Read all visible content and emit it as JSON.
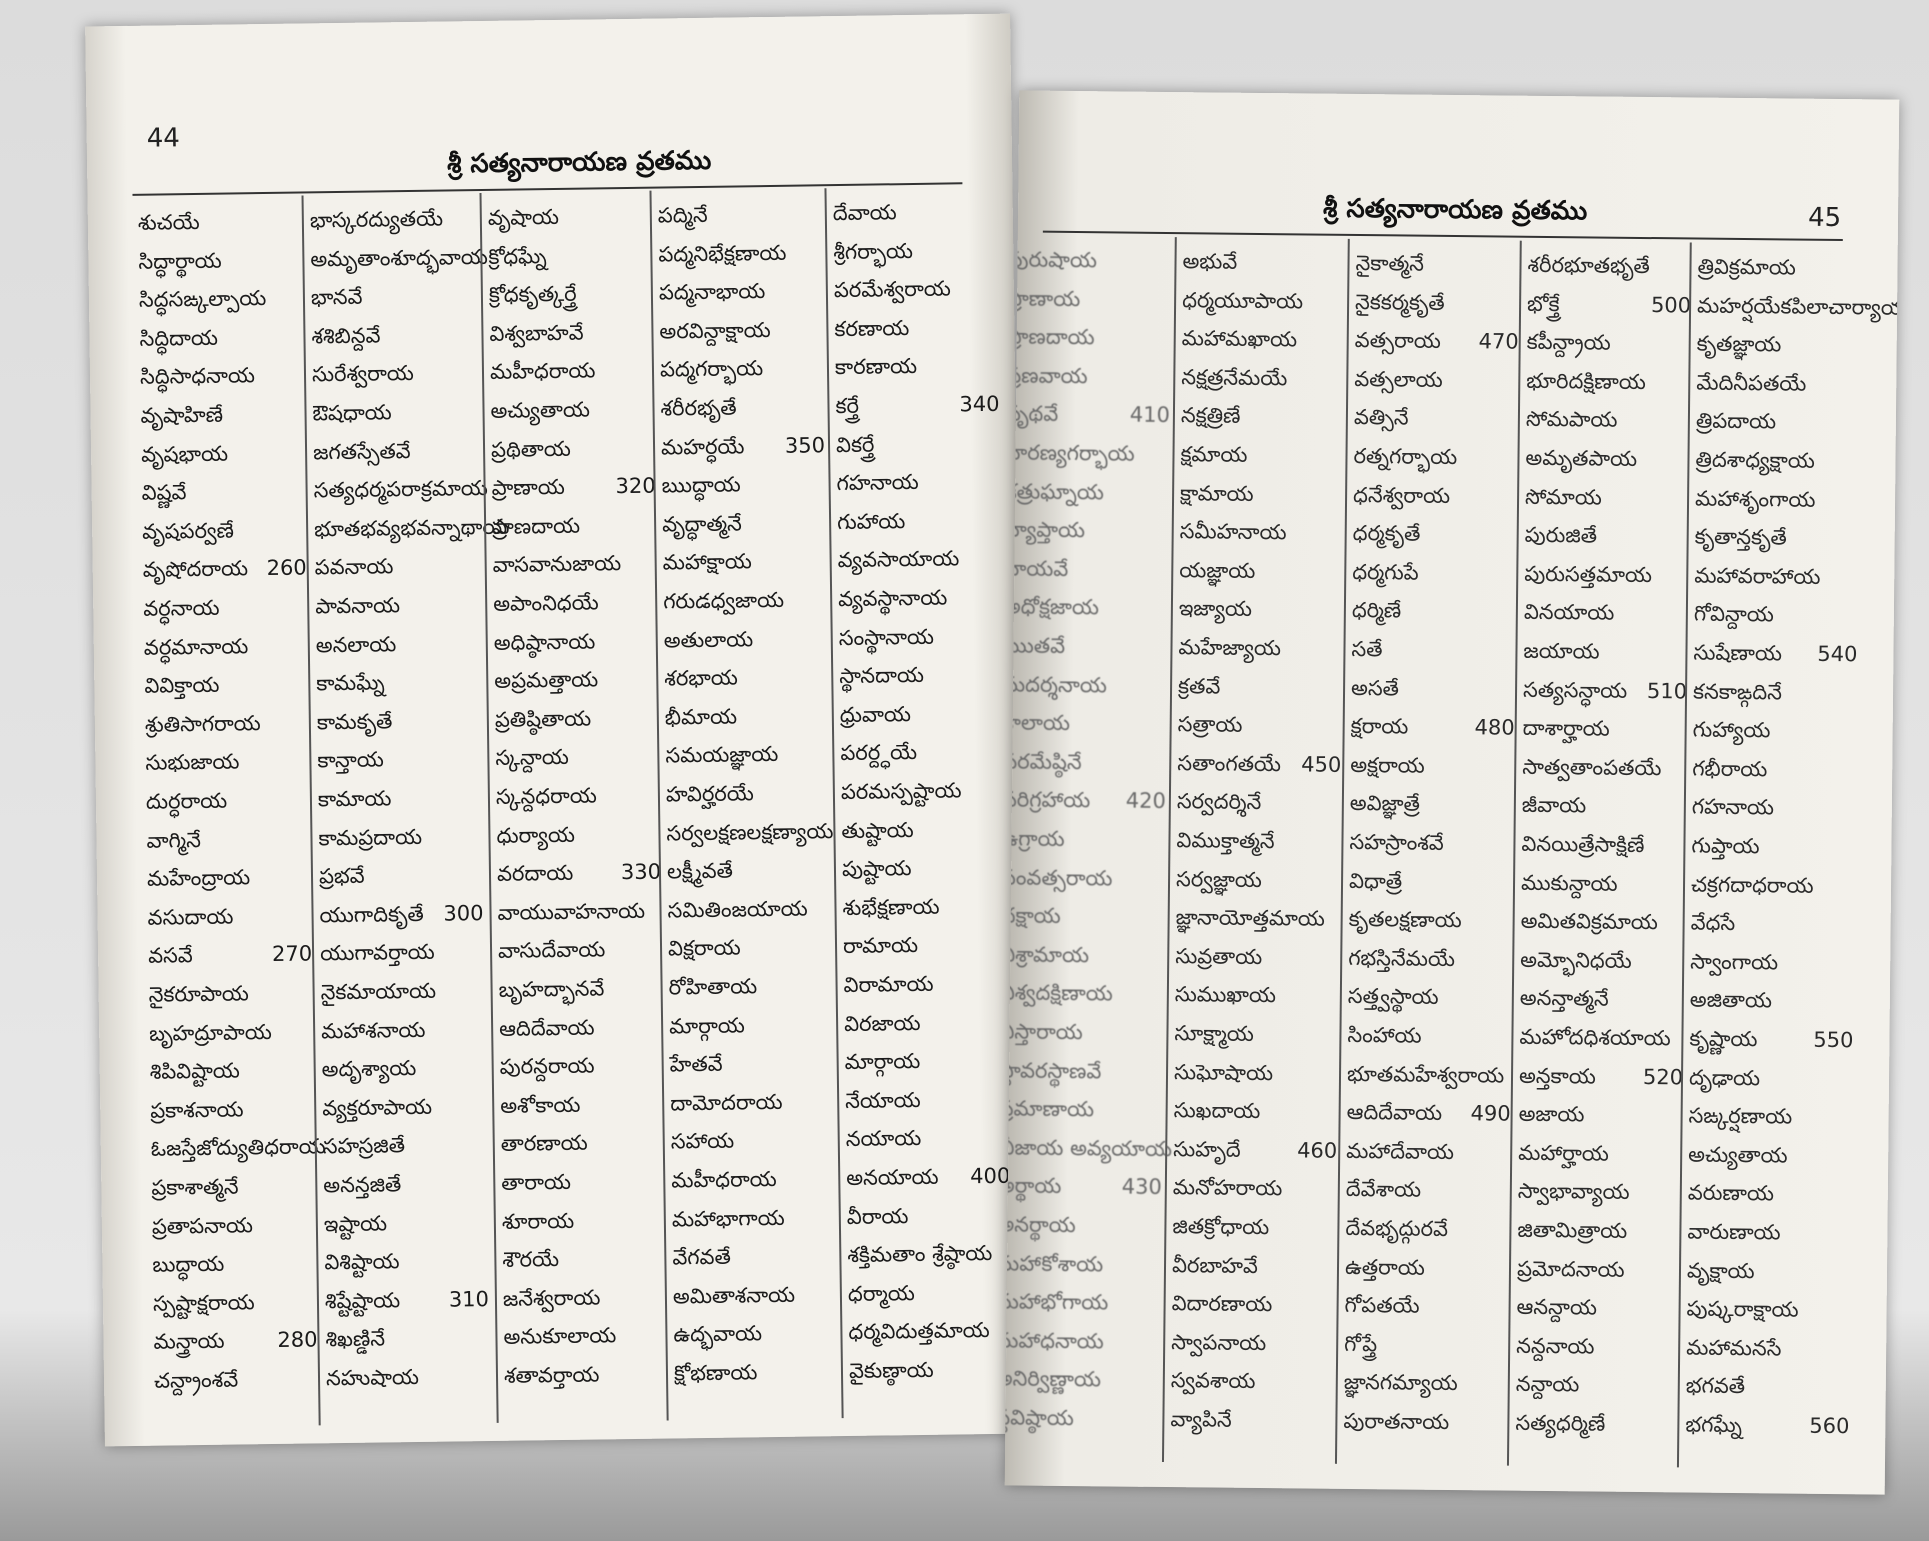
{
  "pages": [
    {
      "number": "44",
      "title": "శ్రీ సత్యనారాయణ వ్రతము",
      "columns": [
        [
          {
            "t": "శుచయే"
          },
          {
            "t": "సిద్ధార్థాయ"
          },
          {
            "t": "సిద్ధసఙ్కల్పాయ"
          },
          {
            "t": "సిద్ధిదాయ"
          },
          {
            "t": "సిద్ధిసాధనాయ"
          },
          {
            "t": "వృషాహిణే"
          },
          {
            "t": "వృషభాయ"
          },
          {
            "t": "విష్ణవే"
          },
          {
            "t": "వృషపర్వణే"
          },
          {
            "t": "వృషోదరాయ",
            "n": 260
          },
          {
            "t": "వర్ధనాయ"
          },
          {
            "t": "వర్ధమానాయ"
          },
          {
            "t": "వివిక్తాయ"
          },
          {
            "t": "శ్రుతిసాగరాయ"
          },
          {
            "t": "సుభుజాయ"
          },
          {
            "t": "దుర్ధరాయ"
          },
          {
            "t": "వాగ్మినే"
          },
          {
            "t": "మహేంద్రాయ"
          },
          {
            "t": "వసుదాయ"
          },
          {
            "t": "వసవే",
            "n": 270
          },
          {
            "t": "నైకరూపాయ"
          },
          {
            "t": "బృహద్రూపాయ"
          },
          {
            "t": "శిపివిష్టాయ"
          },
          {
            "t": "ప్రకాశనాయ"
          },
          {
            "t": "ఓజస్తేజోద్యుతిధరాయ"
          },
          {
            "t": "ప్రకాశాత్మనే"
          },
          {
            "t": "ప్రతాపనాయ"
          },
          {
            "t": "బుద్ధాయ"
          },
          {
            "t": "స్పష్టాక్షరాయ"
          },
          {
            "t": "మన్త్రాయ",
            "n": 280
          },
          {
            "t": "చన్ద్రాంశవే"
          }
        ],
        [
          {
            "t": "భాస్కరద్యుతయే"
          },
          {
            "t": "అమృతాంశూద్భవాయ"
          },
          {
            "t": "భానవే"
          },
          {
            "t": "శశిబిన్దవే"
          },
          {
            "t": "సురేశ్వరాయ"
          },
          {
            "t": "ఔషధాయ"
          },
          {
            "t": "జగతస్సేతవే"
          },
          {
            "t": "సత్యధర్మపరాక్రమాయ"
          },
          {
            "t": "భూతభవ్యభవన్నాథాయ"
          },
          {
            "t": "పవనాయ"
          },
          {
            "t": "పావనాయ"
          },
          {
            "t": "అనలాయ"
          },
          {
            "t": "కామఘ్నే"
          },
          {
            "t": "కామకృతే"
          },
          {
            "t": "కాన్తాయ"
          },
          {
            "t": "కామాయ"
          },
          {
            "t": "కామప్రదాయ"
          },
          {
            "t": "ప్రభవే"
          },
          {
            "t": "యుగాదికృతే",
            "n": 300
          },
          {
            "t": "యుగావర్తాయ"
          },
          {
            "t": "నైకమాయాయ"
          },
          {
            "t": "మహాశనాయ"
          },
          {
            "t": "అదృశ్యాయ"
          },
          {
            "t": "వ్యక్తరూపాయ"
          },
          {
            "t": "సహస్రజితే"
          },
          {
            "t": "అనన్తజితే"
          },
          {
            "t": "ఇష్టాయ"
          },
          {
            "t": "విశిష్టాయ"
          },
          {
            "t": "శిష్టేష్టాయ",
            "n": 310
          },
          {
            "t": "శిఖణ్డినే"
          },
          {
            "t": "నహుషాయ"
          }
        ],
        [
          {
            "t": "వృషాయ"
          },
          {
            "t": "క్రోధఘ్నే"
          },
          {
            "t": "క్రోధకృత్కర్త్రే"
          },
          {
            "t": "విశ్వబాహవే"
          },
          {
            "t": "మహీధరాయ"
          },
          {
            "t": "అచ్యుతాయ"
          },
          {
            "t": "ప్రథితాయ"
          },
          {
            "t": "ప్రాణాయ",
            "n": 320
          },
          {
            "t": "ప్రాణదాయ"
          },
          {
            "t": "వాసవానుజాయ"
          },
          {
            "t": "అపాంనిధయే"
          },
          {
            "t": "అధిష్ఠానాయ"
          },
          {
            "t": "అప్రమత్తాయ"
          },
          {
            "t": "ప్రతిష్ఠితాయ"
          },
          {
            "t": "స్కన్దాయ"
          },
          {
            "t": "స్కన్దధరాయ"
          },
          {
            "t": "ధుర్యాయ"
          },
          {
            "t": "వరదాయ",
            "n": 330
          },
          {
            "t": "వాయువాహనాయ"
          },
          {
            "t": "వాసుదేవాయ"
          },
          {
            "t": "బృహద్భానవే"
          },
          {
            "t": "ఆదిదేవాయ"
          },
          {
            "t": "పురన్దరాయ"
          },
          {
            "t": "అశోకాయ"
          },
          {
            "t": "తారణాయ"
          },
          {
            "t": "తారాయ"
          },
          {
            "t": "శూరాయ"
          },
          {
            "t": "శౌరయే"
          },
          {
            "t": "జనేశ్వరాయ"
          },
          {
            "t": "అనుకూలాయ"
          },
          {
            "t": "శతావర్తాయ"
          }
        ],
        [
          {
            "t": "పద్మినే"
          },
          {
            "t": "పద్మనిభేక్షణాయ"
          },
          {
            "t": "పద్మనాభాయ"
          },
          {
            "t": "అరవిన్దాక్షాయ"
          },
          {
            "t": "పద్మగర్భాయ"
          },
          {
            "t": "శరీరభృతే"
          },
          {
            "t": "మహర్ధయే",
            "n": 350
          },
          {
            "t": "ఋద్ధాయ"
          },
          {
            "t": "వృద్ధాత్మనే"
          },
          {
            "t": "మహాక్షాయ"
          },
          {
            "t": "గరుడధ్వజాయ"
          },
          {
            "t": "అతులాయ"
          },
          {
            "t": "శరభాయ"
          },
          {
            "t": "భీమాయ"
          },
          {
            "t": "సమయజ్ఞాయ"
          },
          {
            "t": "హవిర్హరయే"
          },
          {
            "t": "సర్వలక్షణలక్షణ్యాయ"
          },
          {
            "t": "లక్ష్మీవతే"
          },
          {
            "t": "సమితింజయాయ"
          },
          {
            "t": "విక్షరాయ"
          },
          {
            "t": "రోహితాయ"
          },
          {
            "t": "మార్గాయ"
          },
          {
            "t": "హేతవే"
          },
          {
            "t": "దామోదరాయ"
          },
          {
            "t": "సహాయ"
          },
          {
            "t": "మహీధరాయ"
          },
          {
            "t": "మహాభాగాయ"
          },
          {
            "t": "వేగవతే"
          },
          {
            "t": "అమితాశనాయ"
          },
          {
            "t": "ఉద్భవాయ"
          },
          {
            "t": "క్షోభణాయ"
          }
        ],
        [
          {
            "t": "దేవాయ"
          },
          {
            "t": "శ్రీగర్భాయ"
          },
          {
            "t": "పరమేశ్వరాయ"
          },
          {
            "t": "కరణాయ"
          },
          {
            "t": "కారణాయ"
          },
          {
            "t": "కర్త్రే",
            "n": 340
          },
          {
            "t": "వికర్త్రే"
          },
          {
            "t": "గహనాయ"
          },
          {
            "t": "గుహాయ"
          },
          {
            "t": "వ్యవసాయాయ"
          },
          {
            "t": "వ్యవస్థానాయ"
          },
          {
            "t": "సంస్థానాయ"
          },
          {
            "t": "స్థానదాయ"
          },
          {
            "t": "ధ్రువాయ"
          },
          {
            "t": "పరర్ద్ధయే"
          },
          {
            "t": "పరమస్పష్టాయ"
          },
          {
            "t": "తుష్టాయ"
          },
          {
            "t": "పుష్టాయ"
          },
          {
            "t": "శుభేక్షణాయ"
          },
          {
            "t": "రామాయ"
          },
          {
            "t": "విరామాయ"
          },
          {
            "t": "విరజాయ"
          },
          {
            "t": "మార్గాయ"
          },
          {
            "t": "నేయాయ"
          },
          {
            "t": "నయాయ"
          },
          {
            "t": "అనయాయ",
            "n": 400
          },
          {
            "t": "వీరాయ"
          },
          {
            "t": "శక్తిమతాం శ్రేష్ఠాయ"
          },
          {
            "t": "ధర్మాయ"
          },
          {
            "t": "ధర్మవిదుత్తమాయ"
          },
          {
            "t": "వైకుణ్ఠాయ"
          }
        ]
      ]
    },
    {
      "number": "45",
      "title": "శ్రీ సత్యనారాయణ వ్రతము",
      "columns": [
        [
          {
            "t": "పురుషాయ"
          },
          {
            "t": "ప్రాణాయ"
          },
          {
            "t": "ప్రాణదాయ"
          },
          {
            "t": "ప్రణవాయ"
          },
          {
            "t": "పృథవే",
            "n": 410
          },
          {
            "t": "హిరణ్యగర్భాయ"
          },
          {
            "t": "శత్రుఘ్నాయ"
          },
          {
            "t": "వ్యాప్తాయ"
          },
          {
            "t": "వాయవే"
          },
          {
            "t": "అధోక్షజాయ"
          },
          {
            "t": "ఋతవే"
          },
          {
            "t": "సుదర్శనాయ"
          },
          {
            "t": "కాలాయ"
          },
          {
            "t": "పరమేష్ఠినే"
          },
          {
            "t": "పరిగ్రహాయ",
            "n": 420
          },
          {
            "t": "ఉగ్రాయ"
          },
          {
            "t": "సంవత్సరాయ"
          },
          {
            "t": "దక్షాయ"
          },
          {
            "t": "విశ్రామాయ"
          },
          {
            "t": "విశ్వదక్షిణాయ"
          },
          {
            "t": "విస్తారాయ"
          },
          {
            "t": "స్థావరస్థాణవే"
          },
          {
            "t": "ప్రమాణాయ"
          },
          {
            "t": "బీజాయ అవ్యయాయ"
          },
          {
            "t": "అర్థాయ",
            "n": 430
          },
          {
            "t": "అనర్థాయ"
          },
          {
            "t": "మహాకోశాయ"
          },
          {
            "t": "మహాభోగాయ"
          },
          {
            "t": "మహాధనాయ"
          },
          {
            "t": "అనిర్విణ్ణాయ"
          },
          {
            "t": "స్థవిష్ఠాయ"
          }
        ],
        [
          {
            "t": "అభువే"
          },
          {
            "t": "ధర్మయూపాయ"
          },
          {
            "t": "మహామఖాయ"
          },
          {
            "t": "నక్షత్రనేమయే"
          },
          {
            "t": "నక్షత్రిణే"
          },
          {
            "t": "క్షమాయ"
          },
          {
            "t": "క్షామాయ"
          },
          {
            "t": "సమీహనాయ"
          },
          {
            "t": "యజ్ఞాయ"
          },
          {
            "t": "ఇజ్యాయ"
          },
          {
            "t": "మహేజ్యాయ"
          },
          {
            "t": "క్రతవే"
          },
          {
            "t": "సత్రాయ"
          },
          {
            "t": "సతాంగతయే",
            "n": 450
          },
          {
            "t": "సర్వదర్శినే"
          },
          {
            "t": "విముక్తాత్మనే"
          },
          {
            "t": "సర్వజ్ఞాయ"
          },
          {
            "t": "జ్ఞానాయోత్తమాయ"
          },
          {
            "t": "సువ్రతాయ"
          },
          {
            "t": "సుముఖాయ"
          },
          {
            "t": "సూక్ష్మాయ"
          },
          {
            "t": "సుఘోషాయ"
          },
          {
            "t": "సుఖదాయ"
          },
          {
            "t": "సుహృదే",
            "n": 460
          },
          {
            "t": "మనోహరాయ"
          },
          {
            "t": "జితక్రోధాయ"
          },
          {
            "t": "వీరబాహవే"
          },
          {
            "t": "విదారణాయ"
          },
          {
            "t": "స్వాపనాయ"
          },
          {
            "t": "స్వవశాయ"
          },
          {
            "t": "వ్యాపినే"
          }
        ],
        [
          {
            "t": "నైకాత్మనే"
          },
          {
            "t": "నైకకర్మకృతే"
          },
          {
            "t": "వత్సరాయ",
            "n": 470
          },
          {
            "t": "వత్సలాయ"
          },
          {
            "t": "వత్సినే"
          },
          {
            "t": "రత్నగర్భాయ"
          },
          {
            "t": "ధనేశ్వరాయ"
          },
          {
            "t": "ధర్మకృతే"
          },
          {
            "t": "ధర్మగుపే"
          },
          {
            "t": "ధర్మిణే"
          },
          {
            "t": "సతే"
          },
          {
            "t": "అసతే"
          },
          {
            "t": "క్షరాయ",
            "n": 480
          },
          {
            "t": "అక్షరాయ"
          },
          {
            "t": "అవిజ్ఞాత్రే"
          },
          {
            "t": "సహస్రాంశవే"
          },
          {
            "t": "విధాత్రే"
          },
          {
            "t": "కృతలక్షణాయ"
          },
          {
            "t": "గభస్తినేమయే"
          },
          {
            "t": "సత్త్వస్థాయ"
          },
          {
            "t": "సింహాయ"
          },
          {
            "t": "భూతమహేశ్వరాయ"
          },
          {
            "t": "ఆదిదేవాయ",
            "n": 490
          },
          {
            "t": "మహాదేవాయ"
          },
          {
            "t": "దేవేశాయ"
          },
          {
            "t": "దేవభృద్గురవే"
          },
          {
            "t": "ఉత్తరాయ"
          },
          {
            "t": "గోపతయే"
          },
          {
            "t": "గోప్త్రే"
          },
          {
            "t": "జ్ఞానగమ్యాయ"
          },
          {
            "t": "పురాతనాయ"
          }
        ],
        [
          {
            "t": "శరీరభూతభృతే"
          },
          {
            "t": "భోక్త్రే",
            "n": 500
          },
          {
            "t": "కపీన్ద్రాయ"
          },
          {
            "t": "భూరిదక్షిణాయ"
          },
          {
            "t": "సోమపాయ"
          },
          {
            "t": "అమృతపాయ"
          },
          {
            "t": "సోమాయ"
          },
          {
            "t": "పురుజితే"
          },
          {
            "t": "పురుసత్తమాయ"
          },
          {
            "t": "వినయాయ"
          },
          {
            "t": "జయాయ"
          },
          {
            "t": "సత్యసన్ధాయ",
            "n": 510
          },
          {
            "t": "దాశార్హాయ"
          },
          {
            "t": "సాత్వతాంపతయే"
          },
          {
            "t": "జీవాయ"
          },
          {
            "t": "వినయిత్రేసాక్షిణే"
          },
          {
            "t": "ముకున్దాయ"
          },
          {
            "t": "అమితవిక్రమాయ"
          },
          {
            "t": "అమ్భోనిధయే"
          },
          {
            "t": "అనన్తాత్మనే"
          },
          {
            "t": "మహోదధిశయాయ"
          },
          {
            "t": "అన్తకాయ",
            "n": 520
          },
          {
            "t": "అజాయ"
          },
          {
            "t": "మహార్హాయ"
          },
          {
            "t": "స్వాభావ్యాయ"
          },
          {
            "t": "జితామిత్రాయ"
          },
          {
            "t": "ప్రమోదనాయ"
          },
          {
            "t": "ఆనన్దాయ"
          },
          {
            "t": "నన్దనాయ"
          },
          {
            "t": "నన్దాయ"
          },
          {
            "t": "సత్యధర్మిణే"
          }
        ],
        [
          {
            "t": "త్రివిక్రమాయ"
          },
          {
            "t": "మహర్షయేకపిలాచార్యాయ"
          },
          {
            "t": "కృతజ్ఞాయ"
          },
          {
            "t": "మేదినీపతయే"
          },
          {
            "t": "త్రిపదాయ"
          },
          {
            "t": "త్రిదశాధ్యక్షాయ"
          },
          {
            "t": "మహాశృంగాయ"
          },
          {
            "t": "కృతాన్తకృతే"
          },
          {
            "t": "మహావరాహాయ"
          },
          {
            "t": "గోవిన్దాయ"
          },
          {
            "t": "సుషేణాయ",
            "n": 540
          },
          {
            "t": "కనకాఙ్గదినే"
          },
          {
            "t": "గుహ్యాయ"
          },
          {
            "t": "గభీరాయ"
          },
          {
            "t": "గహనాయ"
          },
          {
            "t": "గుప్తాయ"
          },
          {
            "t": "చక్రగదాధరాయ"
          },
          {
            "t": "వేధసే"
          },
          {
            "t": "స్వాంగాయ"
          },
          {
            "t": "అజితాయ"
          },
          {
            "t": "కృష్ణాయ",
            "n": 550
          },
          {
            "t": "దృఢాయ"
          },
          {
            "t": "సఙ్కర్షణాయ"
          },
          {
            "t": "అచ్యుతాయ"
          },
          {
            "t": "వరుణాయ"
          },
          {
            "t": "వారుణాయ"
          },
          {
            "t": "వృక్షాయ"
          },
          {
            "t": "పుష్కరాక్షాయ"
          },
          {
            "t": "మహామనసే"
          },
          {
            "t": "భగవతే"
          },
          {
            "t": "భగఘ్నే",
            "n": 560
          }
        ]
      ]
    }
  ]
}
